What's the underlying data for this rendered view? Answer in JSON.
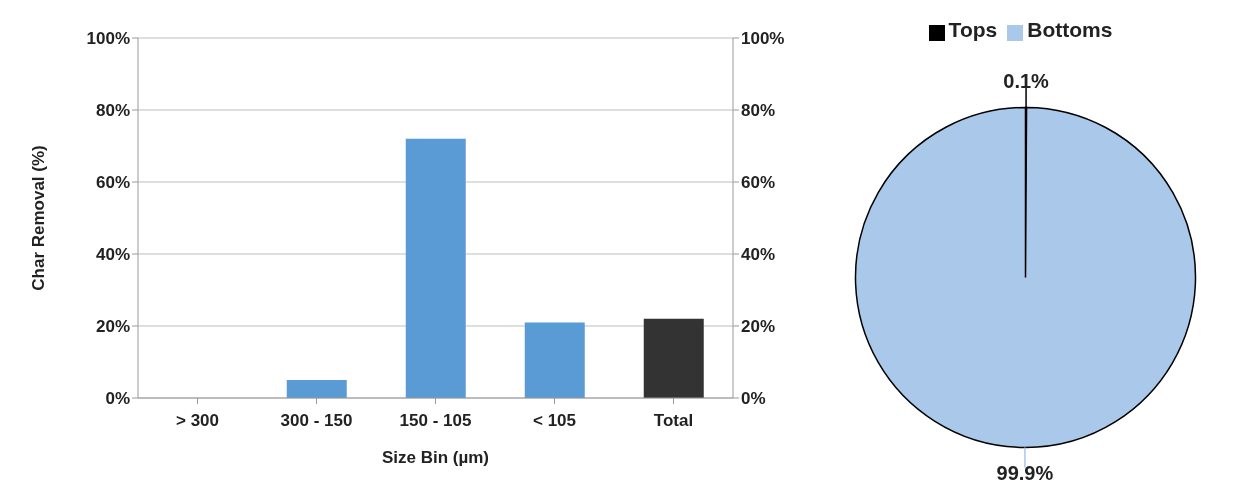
{
  "chart_data": [
    {
      "type": "bar",
      "xlabel": "Size Bin (µm)",
      "ylabel": "Char Removal (%)",
      "categories": [
        "> 300",
        "300 - 150",
        "150 - 105",
        "< 105",
        "Total"
      ],
      "values": [
        0,
        5,
        72,
        21,
        22
      ],
      "colors": [
        "#5b9bd5",
        "#5b9bd5",
        "#5b9bd5",
        "#5b9bd5",
        "#333333"
      ],
      "ylim": [
        0,
        100
      ],
      "yticks": [
        {
          "value": 0,
          "label": "0%"
        },
        {
          "value": 20,
          "label": "20%"
        },
        {
          "value": 40,
          "label": "40%"
        },
        {
          "value": 60,
          "label": "60%"
        },
        {
          "value": 80,
          "label": "80%"
        },
        {
          "value": 100,
          "label": "100%"
        }
      ],
      "y2lim": [
        0,
        100
      ],
      "y2ticks": [
        {
          "value": 0,
          "label": "0%"
        },
        {
          "value": 20,
          "label": "20%"
        },
        {
          "value": 40,
          "label": "40%"
        },
        {
          "value": 60,
          "label": "60%"
        },
        {
          "value": 80,
          "label": "80%"
        },
        {
          "value": 100,
          "label": "100%"
        }
      ],
      "grid": "y"
    },
    {
      "type": "pie",
      "categories": [
        "Tops",
        "Bottoms"
      ],
      "values": [
        0.1,
        99.9
      ],
      "colors": [
        "#000000",
        "#a9c8ea"
      ],
      "value_labels": [
        "0.1%",
        "99.9%"
      ],
      "legend": "top"
    }
  ]
}
